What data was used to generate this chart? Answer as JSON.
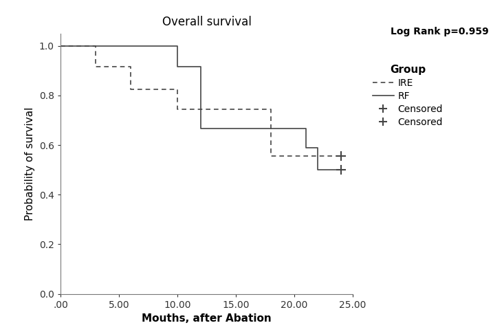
{
  "title": "Overall survival",
  "xlabel": "Mouths, after Abation",
  "ylabel": "Probability of survival",
  "xlim": [
    0,
    25
  ],
  "ylim": [
    0.0,
    1.05
  ],
  "xticks": [
    0,
    5,
    10,
    15,
    20,
    25
  ],
  "xticklabels": [
    ".00",
    "5.00",
    "10.00",
    "15.00",
    "20.00",
    "25.00"
  ],
  "yticks": [
    0.0,
    0.2,
    0.4,
    0.6,
    0.8,
    1.0
  ],
  "yticklabels": [
    "0.0",
    "0.2",
    "0.4",
    "0.6",
    "0.8",
    "1.0"
  ],
  "log_rank_text": "Log Rank p=0.959",
  "legend_title": "Group",
  "ire_x": [
    0,
    3,
    6,
    10,
    18,
    22,
    24
  ],
  "ire_y": [
    1.0,
    0.917,
    0.824,
    0.745,
    0.555,
    0.555,
    0.555
  ],
  "rf_x": [
    0,
    10,
    12,
    18,
    21,
    22,
    24
  ],
  "rf_y": [
    1.0,
    0.917,
    0.667,
    0.667,
    0.59,
    0.5,
    0.5
  ],
  "ire_censored_x": [
    24
  ],
  "ire_censored_y": [
    0.555
  ],
  "rf_censored_x": [
    24
  ],
  "rf_censored_y": [
    0.5
  ],
  "line_color": "#444444",
  "background_color": "#ffffff",
  "title_fontsize": 12,
  "label_fontsize": 11,
  "tick_fontsize": 10,
  "legend_fontsize": 10,
  "log_rank_fontsize": 10
}
